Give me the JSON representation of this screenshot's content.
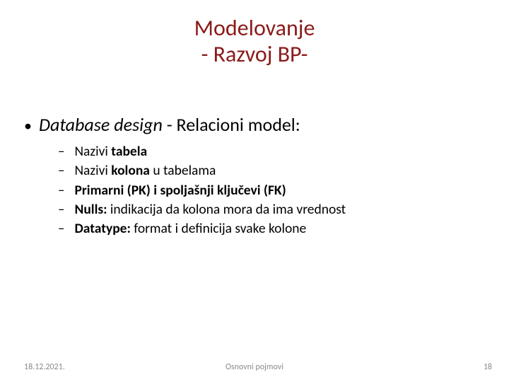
{
  "title": {
    "line1": "Modelovanje",
    "line2": " - Razvoj BP-",
    "color": "#8b1a1a",
    "fontsize": 32
  },
  "main_bullet": {
    "prefix_italic": "Database design",
    "suffix": " - Relacioni model:",
    "fontsize": 26,
    "dot": "•"
  },
  "sub_bullets": {
    "dash": "–",
    "fontsize": 19.5,
    "items": [
      {
        "parts": [
          {
            "text": "Nazivi ",
            "bold": false
          },
          {
            "text": "tabela",
            "bold": true
          }
        ]
      },
      {
        "parts": [
          {
            "text": "Nazivi ",
            "bold": false
          },
          {
            "text": "kolona",
            "bold": true
          },
          {
            "text": " u tabelama",
            "bold": false
          }
        ]
      },
      {
        "parts": [
          {
            "text": "Primarni (PK) i spoljašnji ključevi (FK)",
            "bold": true
          }
        ]
      },
      {
        "parts": [
          {
            "text": "Nulls:",
            "bold": true
          },
          {
            "text": " indikacija da kolona mora da ima vrednost",
            "bold": false
          }
        ]
      },
      {
        "parts": [
          {
            "text": "Datatype:",
            "bold": true
          },
          {
            "text": " format i definicija svake kolone",
            "bold": false
          }
        ]
      }
    ]
  },
  "footer": {
    "date": "18.12.2021.",
    "center": "Osnovni pojmovi",
    "pagenum": "18",
    "color": "#8a8a8a",
    "fontsize": 12
  },
  "background_color": "#ffffff"
}
